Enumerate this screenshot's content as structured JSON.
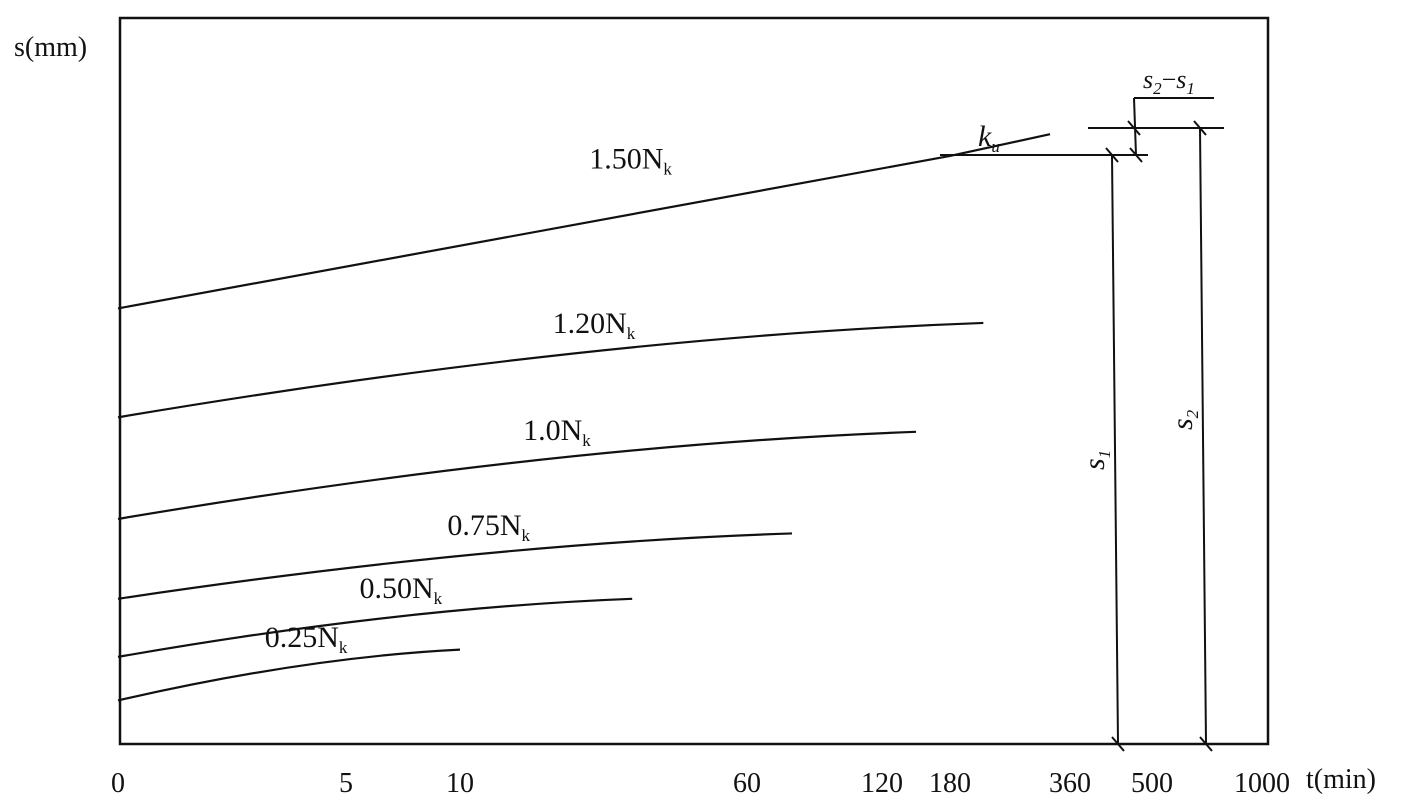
{
  "chart_data": {
    "type": "line",
    "ylabel": "s(mm)",
    "xlabel": "t(min)",
    "x_ticks": [
      "0",
      "5",
      "10",
      "60",
      "120",
      "180",
      "360",
      "500",
      "1000"
    ],
    "series": [
      {
        "name": "0.25N_k",
        "label_main": "0.25N",
        "label_sub": "k",
        "x": [
          0,
          10
        ],
        "y": [
          0.06,
          0.13
        ]
      },
      {
        "name": "0.50N_k",
        "label_main": "0.50N",
        "label_sub": "k",
        "x": [
          0,
          40
        ],
        "y": [
          0.12,
          0.2
        ]
      },
      {
        "name": "0.75N_k",
        "label_main": "0.75N",
        "label_sub": "k",
        "x": [
          0,
          80
        ],
        "y": [
          0.2,
          0.29
        ]
      },
      {
        "name": "1.0N_k",
        "label_main": "1.0N",
        "label_sub": "k",
        "x": [
          0,
          150
        ],
        "y": [
          0.31,
          0.43
        ]
      },
      {
        "name": "1.20N_k",
        "label_main": "1.20N",
        "label_sub": "k",
        "x": [
          0,
          230
        ],
        "y": [
          0.45,
          0.58
        ]
      },
      {
        "name": "1.50N_k",
        "label_main": "1.50N",
        "label_sub": "k",
        "x": [
          0,
          180,
          330
        ],
        "y": [
          0.6,
          0.81,
          0.84
        ]
      }
    ],
    "annotations": {
      "k_label_main": "k",
      "k_label_sub": "u",
      "s1_main": "s",
      "s1_sub": "1",
      "s2_main": "s",
      "s2_sub": "2",
      "diff_a_main": "s",
      "diff_a_sub": "2",
      "diff_sep": "−",
      "diff_b_main": "s",
      "diff_b_sub": "1"
    },
    "grid": false
  }
}
